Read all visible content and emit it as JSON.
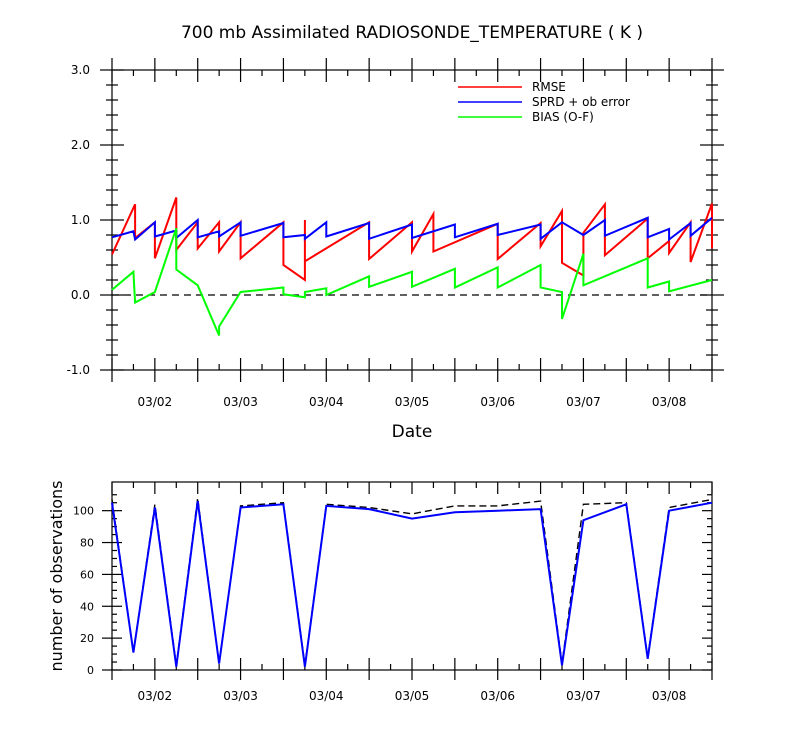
{
  "chart_data": [
    {
      "type": "line",
      "title": "700 mb Assimilated RADIOSONDE_TEMPERATURE ( K )",
      "xlabel": "Date",
      "ylabel": "",
      "ylim": [
        -1.0,
        3.0
      ],
      "yticks": [
        "-1.0",
        "0.0",
        "1.0",
        "2.0",
        "3.0"
      ],
      "xlim": [
        "03/01 12:00",
        "03/08 12:00"
      ],
      "xtick_labels": [
        "03/02",
        "03/03",
        "03/04",
        "03/05",
        "03/06",
        "03/07",
        "03/08"
      ],
      "legend": "top-right",
      "reference_line": 0.0,
      "series": [
        {
          "name": "RMSE",
          "color": "#ff0000",
          "points": [
            [
              0.0,
              0.54
            ],
            [
              0.27,
              1.21
            ],
            [
              0.27,
              0.76
            ],
            [
              0.5,
              0.97
            ],
            [
              0.5,
              0.49
            ],
            [
              0.75,
              1.3
            ],
            [
              0.75,
              0.6
            ],
            [
              1.0,
              0.97
            ],
            [
              1.0,
              0.62
            ],
            [
              1.25,
              0.97
            ],
            [
              1.25,
              0.58
            ],
            [
              1.5,
              0.97
            ],
            [
              1.5,
              0.49
            ],
            [
              2.0,
              0.97
            ],
            [
              2.0,
              0.4
            ],
            [
              2.25,
              0.2
            ],
            [
              2.25,
              1.0
            ],
            [
              2.25,
              0.45
            ],
            [
              3.0,
              0.97
            ],
            [
              3.0,
              0.48
            ],
            [
              3.5,
              0.97
            ],
            [
              3.5,
              0.58
            ],
            [
              3.75,
              1.08
            ],
            [
              3.75,
              0.58
            ],
            [
              4.5,
              0.95
            ],
            [
              4.5,
              0.48
            ],
            [
              5.0,
              0.96
            ],
            [
              5.0,
              0.65
            ],
            [
              5.25,
              1.12
            ],
            [
              5.25,
              0.43
            ],
            [
              5.5,
              0.26
            ],
            [
              5.5,
              0.83
            ],
            [
              5.75,
              1.21
            ],
            [
              5.75,
              0.53
            ],
            [
              6.25,
              1.02
            ],
            [
              6.25,
              0.49
            ],
            [
              6.5,
              0.72
            ],
            [
              6.5,
              0.56
            ],
            [
              6.75,
              0.97
            ],
            [
              6.75,
              0.44
            ],
            [
              7.0,
              1.22
            ],
            [
              7.0,
              0.62
            ]
          ]
        },
        {
          "name": "SPRD + ob error",
          "color": "#0000ff",
          "points": [
            [
              0.0,
              0.77
            ],
            [
              0.25,
              0.85
            ],
            [
              0.27,
              0.74
            ],
            [
              0.5,
              0.97
            ],
            [
              0.5,
              0.78
            ],
            [
              0.75,
              0.86
            ],
            [
              0.75,
              0.76
            ],
            [
              1.0,
              1.0
            ],
            [
              1.0,
              0.77
            ],
            [
              1.25,
              0.85
            ],
            [
              1.25,
              0.78
            ],
            [
              1.5,
              0.97
            ],
            [
              1.5,
              0.79
            ],
            [
              2.0,
              0.96
            ],
            [
              2.0,
              0.77
            ],
            [
              2.25,
              0.8
            ],
            [
              2.25,
              0.75
            ],
            [
              2.5,
              0.97
            ],
            [
              2.5,
              0.78
            ],
            [
              3.0,
              0.96
            ],
            [
              3.0,
              0.75
            ],
            [
              3.5,
              0.94
            ],
            [
              3.5,
              0.76
            ],
            [
              4.0,
              0.94
            ],
            [
              4.0,
              0.77
            ],
            [
              4.5,
              0.95
            ],
            [
              4.5,
              0.8
            ],
            [
              5.0,
              0.94
            ],
            [
              5.0,
              0.75
            ],
            [
              5.25,
              0.97
            ],
            [
              5.5,
              0.8
            ],
            [
              5.75,
              1.0
            ],
            [
              5.75,
              0.79
            ],
            [
              6.25,
              1.03
            ],
            [
              6.25,
              0.77
            ],
            [
              6.5,
              0.88
            ],
            [
              6.5,
              0.74
            ],
            [
              6.75,
              0.96
            ],
            [
              6.75,
              0.79
            ],
            [
              7.0,
              1.03
            ]
          ]
        },
        {
          "name": "BIAS (O-F)",
          "color": "#00ff00",
          "points": [
            [
              0.0,
              0.07
            ],
            [
              0.25,
              0.31
            ],
            [
              0.27,
              -0.1
            ],
            [
              0.5,
              0.04
            ],
            [
              0.75,
              0.89
            ],
            [
              0.75,
              0.34
            ],
            [
              1.0,
              0.13
            ],
            [
              1.25,
              -0.54
            ],
            [
              1.25,
              -0.42
            ],
            [
              1.5,
              0.04
            ],
            [
              2.0,
              0.1
            ],
            [
              2.0,
              0.01
            ],
            [
              2.25,
              -0.03
            ],
            [
              2.25,
              0.04
            ],
            [
              2.5,
              0.09
            ],
            [
              2.5,
              0.0
            ],
            [
              3.0,
              0.25
            ],
            [
              3.0,
              0.11
            ],
            [
              3.5,
              0.31
            ],
            [
              3.5,
              0.11
            ],
            [
              4.0,
              0.35
            ],
            [
              4.0,
              0.1
            ],
            [
              4.5,
              0.37
            ],
            [
              4.5,
              0.1
            ],
            [
              5.0,
              0.4
            ],
            [
              5.0,
              0.1
            ],
            [
              5.25,
              0.04
            ],
            [
              5.25,
              -0.32
            ],
            [
              5.5,
              0.55
            ],
            [
              5.5,
              0.13
            ],
            [
              6.0,
              0.37
            ],
            [
              6.25,
              0.49
            ],
            [
              6.25,
              0.1
            ],
            [
              6.5,
              0.18
            ],
            [
              6.5,
              0.05
            ],
            [
              7.0,
              0.2
            ]
          ]
        }
      ]
    },
    {
      "type": "line",
      "title": "",
      "xlabel": "",
      "ylabel": "number of observations",
      "ylim": [
        0,
        118
      ],
      "yticks": [
        "0",
        "20",
        "40",
        "60",
        "80",
        "100"
      ],
      "xlim": [
        "03/01 12:00",
        "03/08 12:00"
      ],
      "xtick_labels": [
        "03/02",
        "03/03",
        "03/04",
        "03/05",
        "03/06",
        "03/07",
        "03/08"
      ],
      "series": [
        {
          "style": "dashed",
          "color": "#000000",
          "points": [
            [
              0.0,
              107
            ],
            [
              0.25,
              11
            ],
            [
              0.5,
              104
            ],
            [
              0.75,
              3
            ],
            [
              1.0,
              108
            ],
            [
              1.25,
              4
            ],
            [
              1.5,
              103
            ],
            [
              2.0,
              105
            ],
            [
              2.25,
              3
            ],
            [
              2.5,
              104
            ],
            [
              3.0,
              102
            ],
            [
              3.5,
              98
            ],
            [
              4.0,
              103
            ],
            [
              4.5,
              103
            ],
            [
              5.0,
              106
            ],
            [
              5.25,
              4
            ],
            [
              5.5,
              104
            ],
            [
              6.0,
              105
            ],
            [
              6.25,
              8
            ],
            [
              6.5,
              102
            ],
            [
              7.0,
              107
            ]
          ]
        },
        {
          "style": "solid",
          "color": "#0000ff",
          "points": [
            [
              0.0,
              105
            ],
            [
              0.25,
              11
            ],
            [
              0.5,
              102
            ],
            [
              0.75,
              2
            ],
            [
              1.0,
              106
            ],
            [
              1.25,
              4
            ],
            [
              1.5,
              102
            ],
            [
              2.0,
              104
            ],
            [
              2.25,
              2
            ],
            [
              2.5,
              103
            ],
            [
              3.0,
              101
            ],
            [
              3.5,
              95
            ],
            [
              4.0,
              99
            ],
            [
              4.5,
              100
            ],
            [
              5.0,
              101
            ],
            [
              5.25,
              3
            ],
            [
              5.5,
              94
            ],
            [
              6.0,
              104
            ],
            [
              6.25,
              7
            ],
            [
              6.5,
              100
            ],
            [
              7.0,
              105
            ]
          ]
        }
      ]
    }
  ]
}
